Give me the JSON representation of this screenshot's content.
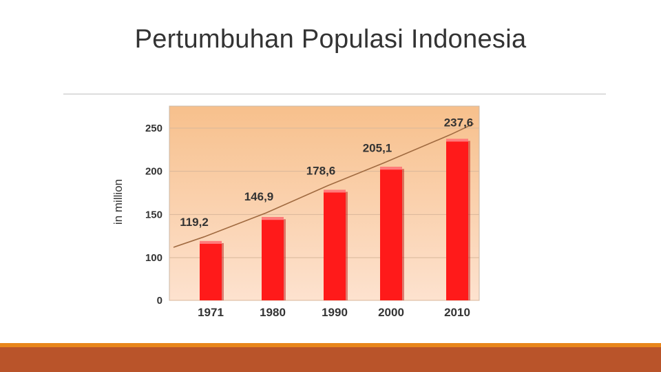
{
  "slide": {
    "title": "Pertumbuhan Populasi Indonesia"
  },
  "colors": {
    "bar": "#ff1a1a",
    "bar_shadow": "#b80000",
    "trend_line": "#a06a40",
    "plot_bg_top": "#f7c08c",
    "plot_bg_bottom": "#fde2cf",
    "footer_thin": "#e8861b",
    "footer_band": "#b9542a"
  },
  "chart_data": {
    "type": "bar",
    "categories": [
      "1971",
      "1980",
      "1990",
      "2000",
      "2010"
    ],
    "values": [
      119.2,
      146.9,
      178.6,
      205.1,
      237.6
    ],
    "value_labels": [
      "119,2",
      "146,9",
      "178,6",
      "205,1",
      "237,6"
    ],
    "ylabel": "in million",
    "yticks": [
      "0",
      "100",
      "150",
      "200",
      "250"
    ],
    "trend_line": true,
    "grid": true
  }
}
